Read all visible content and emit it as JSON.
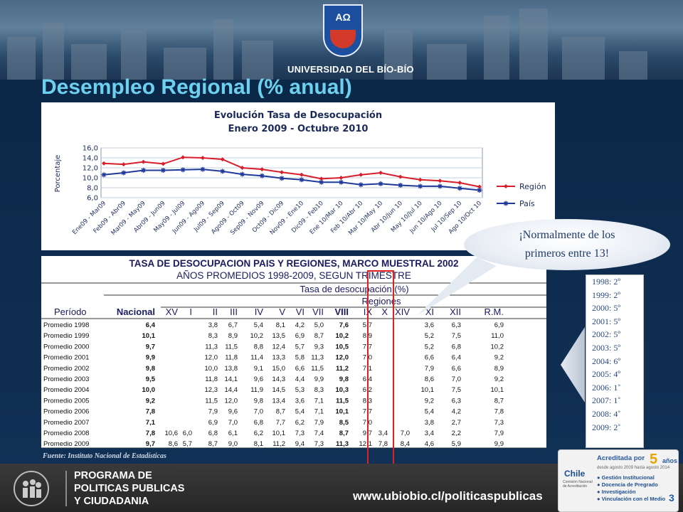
{
  "header": {
    "university_name": "UNIVERSIDAD DEL BÍO-BÍO",
    "emblem_text": "AΩ"
  },
  "slide_title": "Desempleo Regional (% anual)",
  "chart_data": {
    "type": "line",
    "title": "Evolución Tasa de Desocupación",
    "subtitle": "Enero 2009 - Octubre 2010",
    "xlabel": "",
    "ylabel": "Porcentaje",
    "ylim": [
      6.0,
      16.0
    ],
    "yticks": [
      "16,0",
      "14,0",
      "12,0",
      "10,0",
      "8,0",
      "6,0"
    ],
    "categories": [
      "Ene09 - Mar09",
      "Feb09 - Abr09",
      "Mar09 - May09",
      "Abr09 - Jun09",
      "May09 - Jul09",
      "Jun09 - Ago09",
      "Jul09 - Sep09",
      "Ago09 - Oct09",
      "Sep09 - Nov09",
      "Oct09 - Dic09",
      "Nov09 - Ene10",
      "Dic09 - Feb10",
      "Ene 10/Mar 10",
      "Feb 10/Abr 10",
      "Mar 10/May 10",
      "Abr 10/Jun 10",
      "May 10/Jul 10",
      "Jun 10/Ago 10",
      "Jul 10/Sep 10",
      "Ago 10/Oct 10"
    ],
    "series": [
      {
        "name": "Región",
        "color": "#d81e2a",
        "marker": "diamond",
        "values": [
          12.9,
          12.7,
          13.2,
          12.8,
          14.1,
          14.0,
          13.7,
          12.0,
          11.7,
          11.1,
          10.6,
          9.8,
          10.0,
          10.6,
          11.0,
          10.2,
          9.6,
          9.4,
          9.0,
          8.2
        ]
      },
      {
        "name": "País",
        "color": "#1f3a9a",
        "marker": "star",
        "values": [
          10.6,
          11.0,
          11.5,
          11.5,
          11.6,
          11.7,
          11.3,
          10.7,
          10.4,
          9.9,
          9.6,
          9.1,
          9.1,
          8.6,
          8.8,
          8.5,
          8.3,
          8.3,
          7.9,
          7.5
        ]
      }
    ],
    "legend": "right",
    "grid": true
  },
  "table": {
    "title1": "TASA DE DESOCUPACION  PAIS Y REGIONES, MARCO MUESTRAL 2002",
    "title2": "AÑOS PROMEDIOS 1998-2009, SEGUN TRIMESTRE",
    "group_header": "Tasa de desocupación (%)",
    "regions_header": "Regiones",
    "period_header": "Período",
    "columns": [
      "Nacional",
      "XV",
      "I",
      "II",
      "III",
      "IV",
      "V",
      "VI",
      "VII",
      "VIII",
      "IX",
      "X",
      "XIV",
      "XI",
      "XII",
      "R.M."
    ],
    "rows": [
      [
        "Promedio 1998",
        "6,4",
        "",
        "",
        "3,8",
        "6,7",
        "5,4",
        "8,1",
        "4,2",
        "5,0",
        "7,6",
        "5,7",
        "",
        "",
        "3,6",
        "6,3",
        "6,9"
      ],
      [
        "Promedio 1999",
        "10,1",
        "",
        "",
        "8,3",
        "8,9",
        "10,2",
        "13,5",
        "6,9",
        "8,7",
        "10,2",
        "8,9",
        "",
        "",
        "5,2",
        "7,5",
        "11,0"
      ],
      [
        "Promedio 2000",
        "9,7",
        "",
        "",
        "11,3",
        "11,5",
        "8,8",
        "12,4",
        "5,7",
        "9,3",
        "10,5",
        "7,7",
        "",
        "",
        "5,2",
        "6,8",
        "10,2"
      ],
      [
        "Promedio 2001",
        "9,9",
        "",
        "",
        "12,0",
        "11,8",
        "11,4",
        "13,3",
        "5,8",
        "11,3",
        "12,0",
        "7,0",
        "",
        "",
        "6,6",
        "6,4",
        "9,2"
      ],
      [
        "Promedio 2002",
        "9,8",
        "",
        "",
        "10,0",
        "13,8",
        "9,1",
        "15,0",
        "6,6",
        "11,5",
        "11,2",
        "7,1",
        "",
        "",
        "7,9",
        "6,6",
        "8,9"
      ],
      [
        "Promedio 2003",
        "9,5",
        "",
        "",
        "11,8",
        "14,1",
        "9,6",
        "14,3",
        "4,4",
        "9,9",
        "9,8",
        "6,4",
        "",
        "",
        "8,6",
        "7,0",
        "9,2"
      ],
      [
        "Promedio 2004",
        "10,0",
        "",
        "",
        "12,3",
        "14,4",
        "11,9",
        "14,5",
        "5,3",
        "8,3",
        "10,3",
        "6,2",
        "",
        "",
        "10,1",
        "7,5",
        "10,1"
      ],
      [
        "Promedio 2005",
        "9,2",
        "",
        "",
        "11,5",
        "12,0",
        "9,8",
        "13,4",
        "3,6",
        "7,1",
        "11,5",
        "8,3",
        "",
        "",
        "9,2",
        "6,3",
        "8,7"
      ],
      [
        "Promedio 2006",
        "7,8",
        "",
        "",
        "7,9",
        "9,6",
        "7,0",
        "8,7",
        "5,4",
        "7,1",
        "10,1",
        "7,7",
        "",
        "",
        "5,4",
        "4,2",
        "7,8"
      ],
      [
        "Promedio 2007",
        "7,1",
        "",
        "",
        "6,9",
        "7,0",
        "6,8",
        "7,7",
        "6,2",
        "7,9",
        "8,5",
        "7,0",
        "",
        "",
        "3,8",
        "2,7",
        "7,3"
      ],
      [
        "Promedio 2008",
        "7,8",
        "10,6",
        "6,0",
        "6,8",
        "6,1",
        "6,2",
        "10,1",
        "7,3",
        "7,4",
        "8,7",
        "9,7",
        "3,4",
        "7,0",
        "3,4",
        "2,2",
        "7,9"
      ],
      [
        "Promedio 2009",
        "9,7",
        "8,6",
        "5,7",
        "8,7",
        "9,0",
        "8,1",
        "11,2",
        "9,4",
        "7,3",
        "11,3",
        "12,1",
        "7,8",
        "8,4",
        "4,6",
        "5,9",
        "9,9"
      ]
    ]
  },
  "source": "Fuente: Instituto Nacional de Estadísticas",
  "callout": {
    "line1": "¡Normalmente de los",
    "line2": "primeros entre 13!"
  },
  "ranking": [
    "1998: 2º",
    "1999: 2º",
    "2000: 5º",
    "2001: 5º",
    "2002: 5º",
    "2003: 5º",
    "2004: 6º",
    "2005: 4º",
    "2006: 1˚",
    "2007: 1˚",
    "2008: 4˚",
    "2009: 2˚"
  ],
  "footer": {
    "program_line1": "PROGRAMA DE",
    "program_line2": "POLITICAS PUBLICAS",
    "program_line3": "Y CIUDADANIA",
    "url": "www.ubiobio.cl/politicaspublicas",
    "page_number": "3"
  },
  "badge": {
    "accredited": "Acreditada por",
    "years_number": "5",
    "years_label": "años",
    "dates": "desde agosto 2009 hasta agosto 2014",
    "chile": "Chile",
    "commission": "Comisión Nacional de Acreditación",
    "items": [
      "Gestión Institucional",
      "Docencia de Pregrado",
      "Investigación",
      "Vinculación con el Medio"
    ]
  }
}
